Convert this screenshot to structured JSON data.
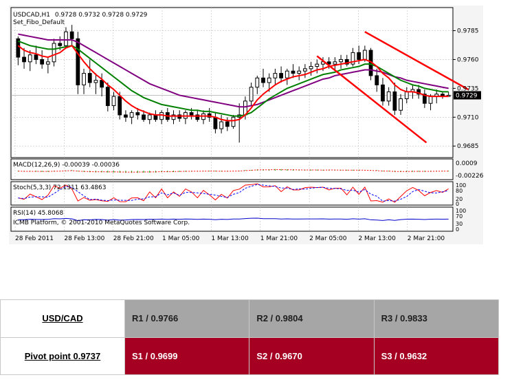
{
  "chart_data": {
    "type": "candlestick",
    "title": "USDCAD,H1",
    "ohlc_header": "0.9728 0.9732 0.9728 0.9729",
    "template": "Set_Fibo_Default",
    "current_price": "0.9729",
    "price_ticks": [
      "0.9785",
      "0.9760",
      "0.9735",
      "0.9710",
      "0.9685"
    ],
    "ylim": [
      0.9675,
      0.9805
    ],
    "time_labels": [
      "28 Feb 2011",
      "28 Feb 13:00",
      "28 Feb 21:00",
      "1 Mar 05:00",
      "1 Mar 13:00",
      "1 Mar 21:00",
      "2 Mar 05:00",
      "2 Mar 13:00",
      "2 Mar 21:00"
    ],
    "candles": [
      [
        0.9778,
        0.978,
        0.9755,
        0.9762
      ],
      [
        0.9762,
        0.977,
        0.9752,
        0.9758
      ],
      [
        0.9758,
        0.9768,
        0.975,
        0.9764
      ],
      [
        0.9764,
        0.9772,
        0.9756,
        0.976
      ],
      [
        0.976,
        0.9768,
        0.9752,
        0.9756
      ],
      [
        0.9756,
        0.9762,
        0.9748,
        0.9758
      ],
      [
        0.9758,
        0.9778,
        0.9754,
        0.9774
      ],
      [
        0.9774,
        0.978,
        0.9768,
        0.9772
      ],
      [
        0.9772,
        0.9788,
        0.977,
        0.9784
      ],
      [
        0.9784,
        0.979,
        0.9772,
        0.9778
      ],
      [
        0.9778,
        0.9784,
        0.973,
        0.9738
      ],
      [
        0.9738,
        0.9752,
        0.973,
        0.9748
      ],
      [
        0.9748,
        0.976,
        0.9736,
        0.974
      ],
      [
        0.974,
        0.9748,
        0.973,
        0.9742
      ],
      [
        0.9742,
        0.9748,
        0.9728,
        0.9736
      ],
      [
        0.9736,
        0.974,
        0.9715,
        0.972
      ],
      [
        0.972,
        0.9732,
        0.9716,
        0.9728
      ],
      [
        0.9728,
        0.9732,
        0.9708,
        0.9712
      ],
      [
        0.9712,
        0.9716,
        0.9706,
        0.971
      ],
      [
        0.971,
        0.9716,
        0.9704,
        0.9714
      ],
      [
        0.9714,
        0.9718,
        0.9708,
        0.9712
      ],
      [
        0.9712,
        0.9716,
        0.9706,
        0.9708
      ],
      [
        0.9708,
        0.9714,
        0.9704,
        0.9712
      ],
      [
        0.9712,
        0.9716,
        0.9706,
        0.9708
      ],
      [
        0.9708,
        0.9716,
        0.9704,
        0.9714
      ],
      [
        0.9714,
        0.9718,
        0.9706,
        0.9708
      ],
      [
        0.9708,
        0.9716,
        0.9704,
        0.9712
      ],
      [
        0.9712,
        0.9716,
        0.9706,
        0.9709
      ],
      [
        0.9709,
        0.9716,
        0.9704,
        0.9714
      ],
      [
        0.9714,
        0.9718,
        0.9708,
        0.9712
      ],
      [
        0.9712,
        0.9716,
        0.9706,
        0.9708
      ],
      [
        0.9708,
        0.9716,
        0.9704,
        0.9713
      ],
      [
        0.9713,
        0.9718,
        0.9706,
        0.971
      ],
      [
        0.971,
        0.9714,
        0.9696,
        0.97
      ],
      [
        0.97,
        0.9712,
        0.9696,
        0.9706
      ],
      [
        0.9706,
        0.971,
        0.9698,
        0.9702
      ],
      [
        0.9702,
        0.9712,
        0.97,
        0.971
      ],
      [
        0.971,
        0.9722,
        0.9688,
        0.9712
      ],
      [
        0.9712,
        0.9728,
        0.9708,
        0.9724
      ],
      [
        0.9724,
        0.974,
        0.972,
        0.9736
      ],
      [
        0.9736,
        0.9746,
        0.973,
        0.9744
      ],
      [
        0.9744,
        0.9752,
        0.9736,
        0.974
      ],
      [
        0.974,
        0.9748,
        0.9732,
        0.9744
      ],
      [
        0.9744,
        0.9752,
        0.9738,
        0.9748
      ],
      [
        0.9748,
        0.9754,
        0.974,
        0.9744
      ],
      [
        0.9744,
        0.9752,
        0.9738,
        0.975
      ],
      [
        0.975,
        0.9756,
        0.9744,
        0.9748
      ],
      [
        0.9748,
        0.9754,
        0.9742,
        0.975
      ],
      [
        0.975,
        0.9756,
        0.9744,
        0.9752
      ],
      [
        0.9752,
        0.9758,
        0.9746,
        0.9754
      ],
      [
        0.9754,
        0.976,
        0.9748,
        0.9756
      ],
      [
        0.9756,
        0.9762,
        0.975,
        0.9758
      ],
      [
        0.9758,
        0.9762,
        0.9752,
        0.9756
      ],
      [
        0.9756,
        0.9762,
        0.975,
        0.9758
      ],
      [
        0.9758,
        0.9764,
        0.9752,
        0.976
      ],
      [
        0.976,
        0.9764,
        0.9754,
        0.9756
      ],
      [
        0.9756,
        0.977,
        0.9754,
        0.9766
      ],
      [
        0.9766,
        0.9772,
        0.9756,
        0.976
      ],
      [
        0.976,
        0.9772,
        0.9758,
        0.9768
      ],
      [
        0.9768,
        0.977,
        0.9742,
        0.9746
      ],
      [
        0.9746,
        0.9752,
        0.9732,
        0.9738
      ],
      [
        0.9738,
        0.9744,
        0.972,
        0.9724
      ],
      [
        0.9724,
        0.9736,
        0.972,
        0.9732
      ],
      [
        0.9732,
        0.974,
        0.9712,
        0.9716
      ],
      [
        0.9716,
        0.973,
        0.9712,
        0.9726
      ],
      [
        0.9726,
        0.9736,
        0.9722,
        0.9732
      ],
      [
        0.9732,
        0.9738,
        0.9726,
        0.9734
      ],
      [
        0.9734,
        0.9738,
        0.9726,
        0.973
      ],
      [
        0.973,
        0.9734,
        0.9718,
        0.9722
      ],
      [
        0.9722,
        0.973,
        0.9716,
        0.9728
      ],
      [
        0.9728,
        0.9734,
        0.9722,
        0.973
      ],
      [
        0.973,
        0.9732,
        0.9726,
        0.9728
      ],
      [
        0.9728,
        0.9732,
        0.9728,
        0.9729
      ]
    ],
    "ma_red": [
      0.9772,
      0.9768,
      0.9766,
      0.9765,
      0.9763,
      0.9762,
      0.9764,
      0.9766,
      0.977,
      0.9772,
      0.9765,
      0.9758,
      0.9752,
      0.9747,
      0.9743,
      0.9738,
      0.9734,
      0.9729,
      0.9724,
      0.972,
      0.9717,
      0.9715,
      0.9713,
      0.9712,
      0.9712,
      0.9711,
      0.9711,
      0.9711,
      0.9711,
      0.9711,
      0.9711,
      0.9711,
      0.9711,
      0.971,
      0.9708,
      0.9707,
      0.9707,
      0.9708,
      0.9712,
      0.9718,
      0.9725,
      0.973,
      0.9734,
      0.9738,
      0.9741,
      0.9743,
      0.9745,
      0.9746,
      0.9747,
      0.9749,
      0.9751,
      0.9752,
      0.9754,
      0.9755,
      0.9756,
      0.9757,
      0.9758,
      0.9759,
      0.976,
      0.9758,
      0.9754,
      0.9748,
      0.9744,
      0.9738,
      0.9734,
      0.9732,
      0.9732,
      0.9731,
      0.9729,
      0.9728,
      0.9728,
      0.9728,
      0.9728
    ],
    "ma_green": [
      0.9776,
      0.9774,
      0.9772,
      0.9771,
      0.977,
      0.9769,
      0.9769,
      0.977,
      0.9771,
      0.9772,
      0.9769,
      0.9765,
      0.9761,
      0.9757,
      0.9753,
      0.9749,
      0.9745,
      0.9741,
      0.9737,
      0.9733,
      0.973,
      0.9727,
      0.9725,
      0.9723,
      0.9721,
      0.972,
      0.9719,
      0.9718,
      0.9717,
      0.9716,
      0.9716,
      0.9715,
      0.9715,
      0.9714,
      0.9713,
      0.9712,
      0.9711,
      0.9711,
      0.9712,
      0.9714,
      0.9718,
      0.9722,
      0.9726,
      0.9729,
      0.9732,
      0.9735,
      0.9737,
      0.9739,
      0.9741,
      0.9743,
      0.9745,
      0.9747,
      0.9748,
      0.9749,
      0.9751,
      0.9752,
      0.9753,
      0.9754,
      0.9756,
      0.9756,
      0.9754,
      0.9751,
      0.9748,
      0.9745,
      0.9742,
      0.974,
      0.9738,
      0.9737,
      0.9735,
      0.9734,
      0.9733,
      0.9732,
      0.9732
    ],
    "ma_purple": [
      0.9782,
      0.9781,
      0.978,
      0.9779,
      0.9778,
      0.9777,
      0.9777,
      0.9777,
      0.9777,
      0.9777,
      0.9775,
      0.9772,
      0.9769,
      0.9766,
      0.9763,
      0.976,
      0.9757,
      0.9754,
      0.9751,
      0.9748,
      0.9745,
      0.9742,
      0.9739,
      0.9737,
      0.9735,
      0.9733,
      0.9731,
      0.9729,
      0.9728,
      0.9727,
      0.9726,
      0.9725,
      0.9724,
      0.9723,
      0.9722,
      0.9721,
      0.972,
      0.9719,
      0.9719,
      0.972,
      0.9721,
      0.9723,
      0.9725,
      0.9727,
      0.9729,
      0.9731,
      0.9733,
      0.9735,
      0.9737,
      0.9739,
      0.9741,
      0.9743,
      0.9744,
      0.9746,
      0.9747,
      0.9748,
      0.9749,
      0.975,
      0.9751,
      0.9751,
      0.975,
      0.9749,
      0.9747,
      0.9745,
      0.9744,
      0.9742,
      0.9741,
      0.974,
      0.9739,
      0.9738,
      0.9737,
      0.9736,
      0.9735
    ],
    "channel_upper": [
      [
        58,
        0.9784
      ],
      [
        73,
        0.9734
      ]
    ],
    "channel_lower": [
      [
        50,
        0.9763
      ],
      [
        66,
        0.9688
      ]
    ],
    "macd": {
      "label": "MACD(12,26,9) -0.00039 -0.00036",
      "ticks": [
        "0.0009",
        "-0.00226"
      ]
    },
    "stoch": {
      "label": "Stoch(5,3,3) 72.1311 63.4863",
      "ticks": [
        "100",
        "80",
        "20",
        "0"
      ]
    },
    "rsi": {
      "label": "RSI(14) 45.8068",
      "ticks": [
        "100",
        "70",
        "30",
        "0"
      ]
    },
    "copyright": "ICMB Platform, © 2001-2010 MetaQuotes Software Corp."
  },
  "pivot": {
    "pair": "USD/CAD",
    "pivot_point": "Pivot point 0.9737",
    "resistance": [
      "R1 / 0.9766",
      "R2 / 0.9804",
      "R3 / 0.9833"
    ],
    "support": [
      "S1 / 0.9699",
      "S2 / 0.9670",
      "S3 / 0.9632"
    ]
  },
  "colors": {
    "bull": "#00aa00",
    "bear": "#008800",
    "ma_red": "#ff0000",
    "ma_green": "#008000",
    "ma_purple": "#800080",
    "channel": "#ff0000",
    "support_bg": "#a50021",
    "resistance_bg": "#a6a6a6"
  }
}
